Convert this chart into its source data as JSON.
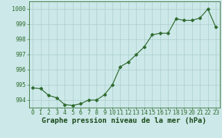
{
  "x": [
    0,
    1,
    2,
    3,
    4,
    5,
    6,
    7,
    8,
    9,
    10,
    11,
    12,
    13,
    14,
    15,
    16,
    17,
    18,
    19,
    20,
    21,
    22,
    23
  ],
  "y": [
    994.8,
    994.75,
    994.3,
    994.15,
    993.7,
    993.65,
    993.75,
    994.0,
    994.0,
    994.35,
    995.0,
    996.2,
    996.5,
    997.0,
    997.5,
    998.3,
    998.4,
    998.4,
    999.35,
    999.25,
    999.25,
    999.4,
    1000.0,
    998.8
  ],
  "line_color": "#2d6a2d",
  "marker": "D",
  "marker_size": 2.5,
  "bg_color": "#cce8e8",
  "grid_color": "#aacccc",
  "xlabel": "Graphe pression niveau de la mer (hPa)",
  "xlabel_fontsize": 7.5,
  "xlabel_color": "#1a4a1a",
  "ylim_min": 993.5,
  "ylim_max": 1000.5,
  "yticks": [
    994,
    995,
    996,
    997,
    998,
    999,
    1000
  ],
  "xtick_labels": [
    "0",
    "1",
    "2",
    "3",
    "4",
    "5",
    "6",
    "7",
    "8",
    "9",
    "10",
    "11",
    "12",
    "13",
    "14",
    "15",
    "16",
    "17",
    "18",
    "19",
    "20",
    "21",
    "22",
    "23"
  ],
  "tick_fontsize": 6.0
}
